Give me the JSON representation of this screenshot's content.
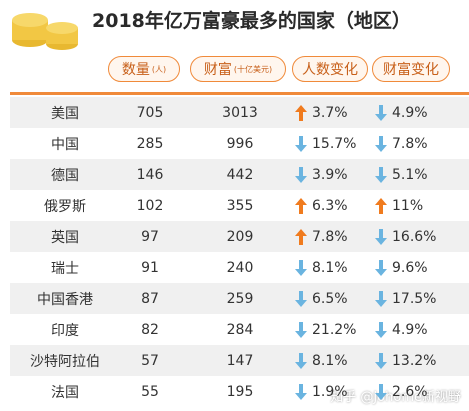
{
  "header": {
    "title": "2018年亿万富豪最多的国家（地区）"
  },
  "table": {
    "columns": [
      {
        "label": "数量",
        "unit": "(人)"
      },
      {
        "label": "财富",
        "unit": "(十亿美元)"
      },
      {
        "label": "人数变化"
      },
      {
        "label": "财富变化"
      }
    ],
    "rows": [
      {
        "name": "美国",
        "count": "705",
        "wealth": "3013",
        "count_change": {
          "dir": "up",
          "text": "3.7%"
        },
        "wealth_change": {
          "dir": "down",
          "text": "4.9%"
        }
      },
      {
        "name": "中国",
        "count": "285",
        "wealth": "996",
        "count_change": {
          "dir": "down",
          "text": "15.7%"
        },
        "wealth_change": {
          "dir": "down",
          "text": "7.8%"
        }
      },
      {
        "name": "德国",
        "count": "146",
        "wealth": "442",
        "count_change": {
          "dir": "down",
          "text": "3.9%"
        },
        "wealth_change": {
          "dir": "down",
          "text": "5.1%"
        }
      },
      {
        "name": "俄罗斯",
        "count": "102",
        "wealth": "355",
        "count_change": {
          "dir": "up",
          "text": "6.3%"
        },
        "wealth_change": {
          "dir": "up",
          "text": "11%"
        }
      },
      {
        "name": "英国",
        "count": "97",
        "wealth": "209",
        "count_change": {
          "dir": "up",
          "text": "7.8%"
        },
        "wealth_change": {
          "dir": "down",
          "text": "16.6%"
        }
      },
      {
        "name": "瑞士",
        "count": "91",
        "wealth": "240",
        "count_change": {
          "dir": "down",
          "text": "8.1%"
        },
        "wealth_change": {
          "dir": "down",
          "text": "9.6%"
        }
      },
      {
        "name": "中国香港",
        "count": "87",
        "wealth": "259",
        "count_change": {
          "dir": "down",
          "text": "6.5%"
        },
        "wealth_change": {
          "dir": "down",
          "text": "17.5%"
        }
      },
      {
        "name": "印度",
        "count": "82",
        "wealth": "284",
        "count_change": {
          "dir": "down",
          "text": "21.2%"
        },
        "wealth_change": {
          "dir": "down",
          "text": "4.9%"
        }
      },
      {
        "name": "沙特阿拉伯",
        "count": "57",
        "wealth": "147",
        "count_change": {
          "dir": "down",
          "text": "8.1%"
        },
        "wealth_change": {
          "dir": "down",
          "text": "13.2%"
        }
      },
      {
        "name": "法国",
        "count": "55",
        "wealth": "195",
        "count_change": {
          "dir": "down",
          "text": "1.9%"
        },
        "wealth_change": {
          "dir": "down",
          "text": "2.6%"
        }
      }
    ]
  },
  "watermark": "知乎 @Johome新视野"
}
